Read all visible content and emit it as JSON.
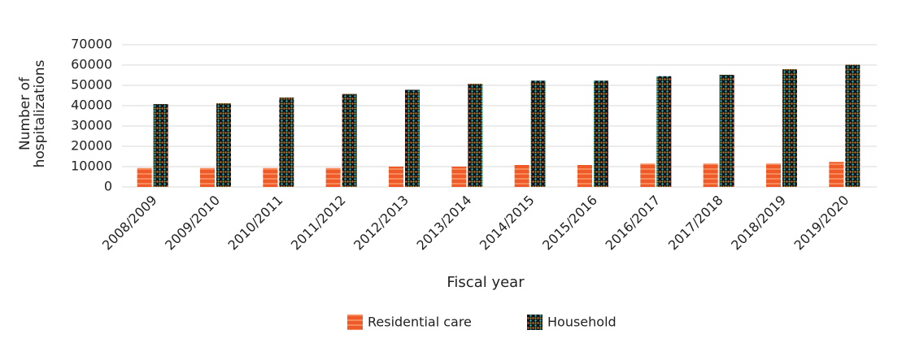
{
  "chart_data": {
    "type": "bar",
    "x_label": "Fiscal year",
    "y_label": "Number of hospitalizations",
    "categories": [
      "2008/2009",
      "2009/2010",
      "2010/2011",
      "2011/2012",
      "2012/2013",
      "2013/2014",
      "2014/2015",
      "2015/2016",
      "2016/2017",
      "2017/2018",
      "2018/2019",
      "2019/2020"
    ],
    "series": [
      {
        "name": "Residential care",
        "color": "#f05a28",
        "values": [
          9300,
          9300,
          9300,
          9300,
          10000,
          10000,
          10800,
          10800,
          11500,
          11500,
          11500,
          12300
        ]
      },
      {
        "name": "Household",
        "color": "#111111",
        "values": [
          40800,
          41200,
          44000,
          45800,
          47800,
          50800,
          52300,
          52300,
          54500,
          55200,
          58000,
          60200
        ]
      }
    ],
    "ylim": [
      0,
      70000
    ],
    "yticks": [
      0,
      10000,
      20000,
      30000,
      40000,
      50000,
      60000,
      70000
    ],
    "grid": true,
    "legend": "bottom"
  }
}
